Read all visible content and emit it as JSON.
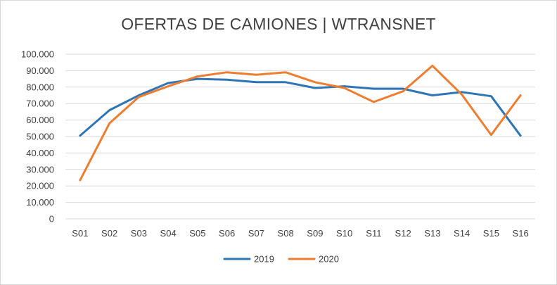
{
  "chart_data": {
    "type": "line",
    "title": "OFERTAS DE CAMIONES | WTRANSNET",
    "xlabel": "",
    "ylabel": "",
    "categories": [
      "S01",
      "S02",
      "S03",
      "S04",
      "S05",
      "S06",
      "S07",
      "S08",
      "S09",
      "S10",
      "S11",
      "S12",
      "S13",
      "S14",
      "S15",
      "S16"
    ],
    "ylim": [
      0,
      100000
    ],
    "yticks": [
      "0",
      "10.000",
      "20.000",
      "30.000",
      "40.000",
      "50.000",
      "60.000",
      "70.000",
      "80.000",
      "90.000",
      "100.000"
    ],
    "grid": true,
    "legend_position": "bottom",
    "series": [
      {
        "name": "2019",
        "color": "#2e75b6",
        "values": [
          50500,
          66000,
          75000,
          82500,
          85000,
          84500,
          83000,
          83000,
          79500,
          80500,
          79000,
          79000,
          75000,
          77000,
          74500,
          50500
        ]
      },
      {
        "name": "2020",
        "color": "#ed7d31",
        "values": [
          23500,
          58000,
          74000,
          80500,
          86500,
          89000,
          87500,
          89000,
          83000,
          79500,
          71000,
          77500,
          93000,
          75500,
          51000,
          75000
        ]
      }
    ]
  }
}
